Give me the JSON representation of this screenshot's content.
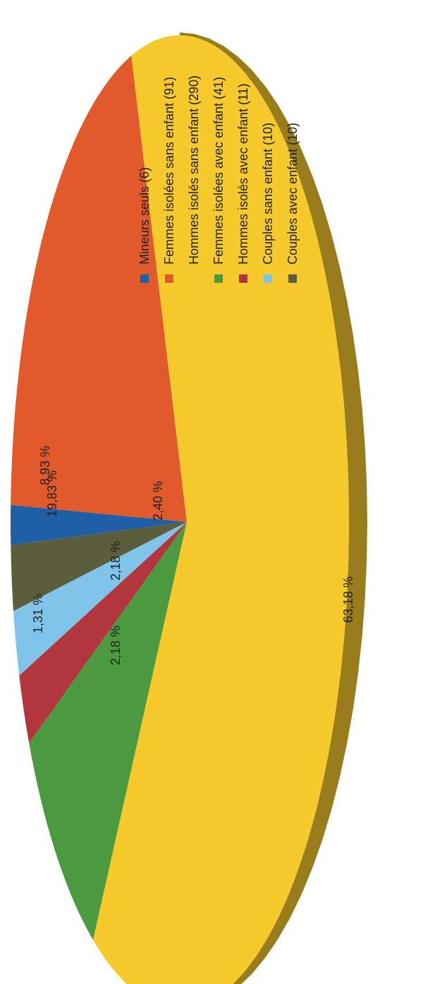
{
  "chart_data": {
    "type": "pie",
    "style": "3d-rotated",
    "slices": [
      {
        "name": "Mineurs seuls (6)",
        "count": 6,
        "percent_label": "1,31 %",
        "color": "#1f5fa8"
      },
      {
        "name": "Femmes isolées sans enfant (91)",
        "count": 91,
        "percent_label": "19,83 %",
        "color": "#e05a2b"
      },
      {
        "name": "Hommes isolés sans enfant (290)",
        "count": 290,
        "percent_label": "63,18 %",
        "color": "#f6c92d"
      },
      {
        "name": "Femmes isolées avec enfant (41)",
        "count": 41,
        "percent_label": "8,93 %",
        "color": "#4c9a3f"
      },
      {
        "name": "Hommes isolés avec enfant (11)",
        "count": 11,
        "percent_label": "2,40 %",
        "color": "#b2363d"
      },
      {
        "name": "Couples sans enfant (10)",
        "count": 10,
        "percent_label": "2,18 %",
        "color": "#80c4ea"
      },
      {
        "name": "Couples avec enfant (10)",
        "count": 10,
        "percent_label": "2,18 %",
        "color": "#5a5e3c"
      }
    ],
    "legend_position": "right"
  }
}
